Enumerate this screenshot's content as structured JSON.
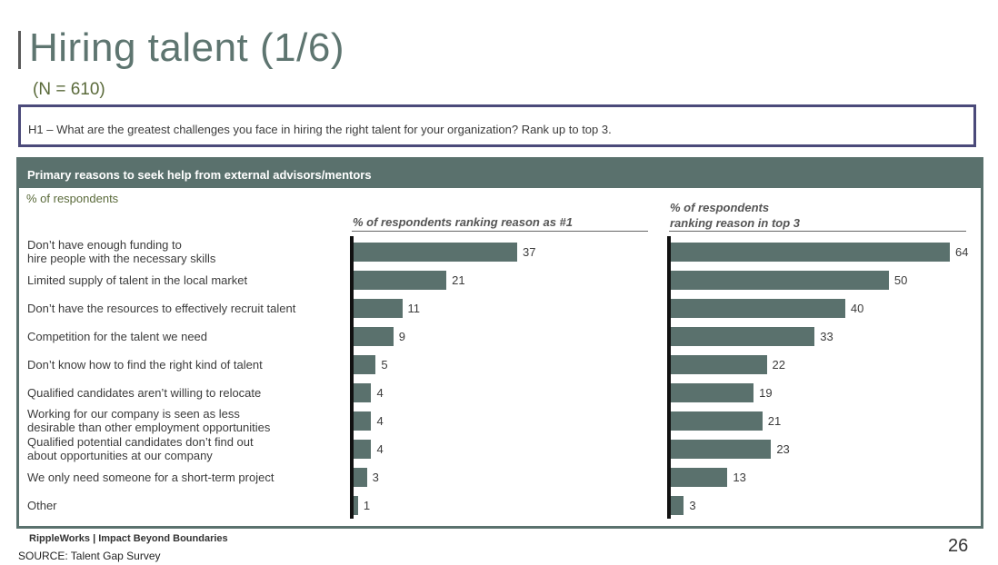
{
  "header": {
    "title": "Hiring talent (1/6)",
    "n_label": "(N = 610)"
  },
  "question": "H1 – What are the greatest challenges you face in hiring the right talent for your organization? Rank up to top 3.",
  "panel": {
    "title": "Primary reasons to seek help from external advisors/mentors"
  },
  "chart_data": {
    "type": "bar",
    "orientation": "horizontal",
    "unit_label": "% of respondents",
    "categories": [
      [
        "Don’t have enough funding to",
        "hire people with the necessary skills"
      ],
      [
        "Limited supply of talent in the local market"
      ],
      [
        "Don’t have the resources to effectively recruit talent"
      ],
      [
        "Competition for the talent we need"
      ],
      [
        "Don’t know how to find the right kind of talent"
      ],
      [
        "Qualified candidates aren’t willing to relocate"
      ],
      [
        "Working for our company is seen as less",
        "desirable than other employment opportunities"
      ],
      [
        "Qualified potential candidates don’t find out",
        "about opportunities at our company"
      ],
      [
        "We only need someone for a short-term project"
      ],
      [
        "Other"
      ]
    ],
    "series": [
      {
        "name": "% of respondents ranking reason as #1",
        "values": [
          37,
          21,
          11,
          9,
          5,
          4,
          4,
          4,
          3,
          1
        ]
      },
      {
        "name": "% of respondents ranking reason in top 3",
        "name_lines": [
          "% of respondents",
          "ranking reason in top 3"
        ],
        "values": [
          64,
          50,
          40,
          33,
          22,
          19,
          21,
          23,
          13,
          3
        ]
      }
    ],
    "xlim": [
      0,
      70
    ]
  },
  "footer": {
    "brand": "RippleWorks | Impact Beyond Boundaries",
    "source": "SOURCE: Talent Gap Survey",
    "page_number": "26"
  },
  "colors": {
    "bar": "#5a716d",
    "title": "#5e7570",
    "question_border": "#4b4a7a"
  }
}
